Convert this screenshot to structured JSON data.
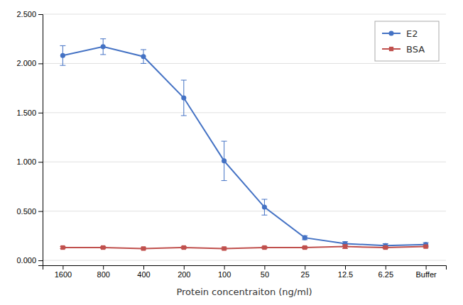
{
  "chart_data": {
    "type": "line",
    "x_label": "Protein concentraiton (ng/ml)",
    "categories": [
      "1600",
      "800",
      "400",
      "200",
      "100",
      "50",
      "25",
      "12.5",
      "6.25",
      "Buffer"
    ],
    "series": [
      {
        "name": "E2",
        "color": "#4472C4",
        "marker": "circle",
        "values": [
          2.08,
          2.17,
          2.07,
          1.65,
          1.01,
          0.54,
          0.23,
          0.17,
          0.15,
          0.16
        ],
        "errors": [
          0.1,
          0.08,
          0.07,
          0.18,
          0.2,
          0.08,
          0.02,
          0.02,
          0.02,
          0.02
        ]
      },
      {
        "name": "BSA",
        "color": "#C0504D",
        "marker": "square",
        "values": [
          0.13,
          0.13,
          0.12,
          0.13,
          0.12,
          0.13,
          0.13,
          0.14,
          0.13,
          0.14
        ],
        "errors": [
          0.01,
          0.01,
          0.01,
          0.01,
          0.01,
          0.01,
          0.01,
          0.02,
          0.01,
          0.01
        ]
      }
    ],
    "ylim": [
      -0.05,
      2.5
    ],
    "yticks": [
      {
        "value": 0.0,
        "label": "0.000"
      },
      {
        "value": 0.5,
        "label": "0.500"
      },
      {
        "value": 1.0,
        "label": "1.000"
      },
      {
        "value": 1.5,
        "label": "1.500"
      },
      {
        "value": 2.0,
        "label": "2.000"
      },
      {
        "value": 2.5,
        "label": "2.500"
      }
    ],
    "grid": true,
    "legend": "upper right"
  }
}
